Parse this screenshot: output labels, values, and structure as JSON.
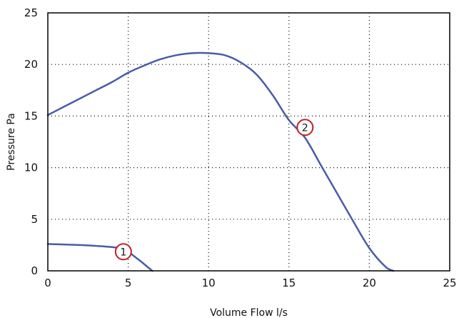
{
  "chart_data": {
    "type": "line",
    "title": "",
    "xlabel": "Volume Flow l/s",
    "ylabel": "Pressure Pa",
    "xlim": [
      0,
      25
    ],
    "ylim": [
      0,
      25
    ],
    "x_ticks": [
      "0",
      "5",
      "10",
      "15",
      "20",
      "25"
    ],
    "y_ticks": [
      "0",
      "5",
      "10",
      "15",
      "20",
      "25"
    ],
    "grid": true,
    "grid_style": "dotted",
    "line_color": "#4a5ca8",
    "marker_color": "#c0202a",
    "series": [
      {
        "label": "1",
        "x": [
          0,
          1,
          2,
          3,
          4,
          4.8,
          5.3,
          5.8,
          6.3,
          6.5
        ],
        "y": [
          2.6,
          2.55,
          2.5,
          2.42,
          2.3,
          2.1,
          1.5,
          0.9,
          0.25,
          0
        ],
        "marker": {
          "x": 4.7,
          "y": 1.85
        }
      },
      {
        "label": "2",
        "x": [
          0,
          1,
          2,
          3,
          4,
          5,
          6,
          7,
          8,
          9,
          10,
          11,
          12,
          13,
          14,
          15,
          16,
          17,
          18,
          19,
          20,
          21,
          21.5
        ],
        "y": [
          15.1,
          15.9,
          16.7,
          17.5,
          18.3,
          19.2,
          19.9,
          20.5,
          20.9,
          21.1,
          21.1,
          20.9,
          20.2,
          19.0,
          17.0,
          14.6,
          12.9,
          10.2,
          7.5,
          4.8,
          2.2,
          0.4,
          0
        ],
        "marker": {
          "x": 16.0,
          "y": 13.9
        }
      }
    ]
  }
}
